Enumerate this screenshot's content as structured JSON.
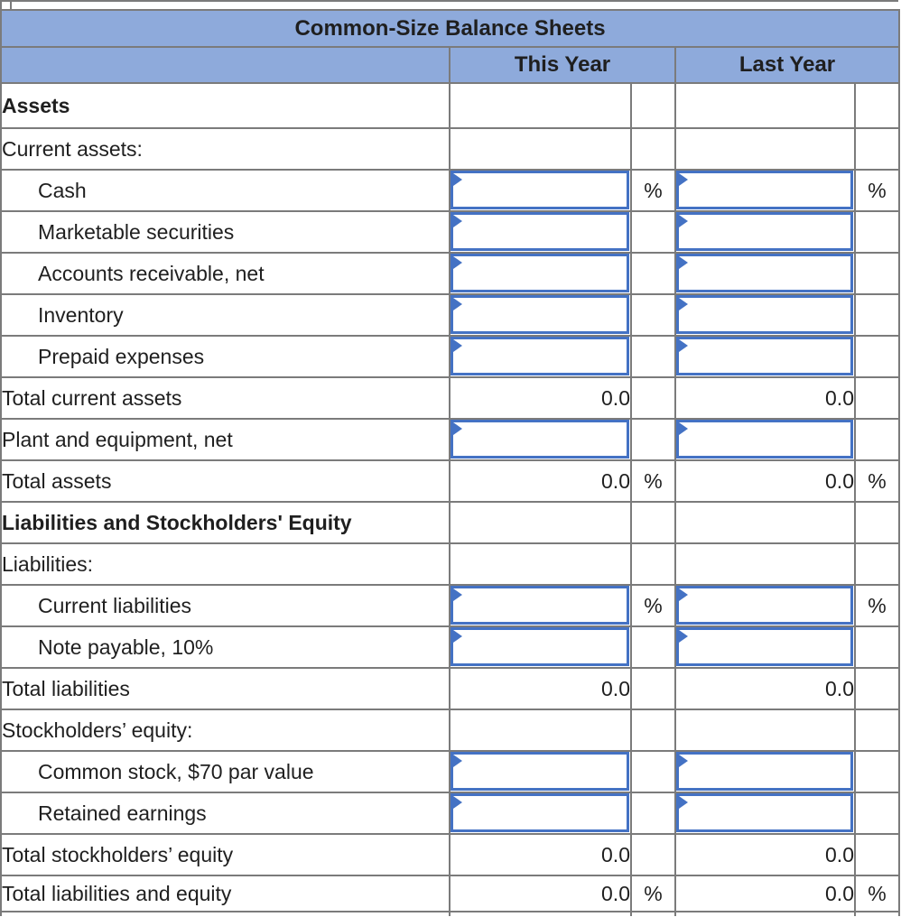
{
  "table": {
    "title": "Common-Size Balance Sheets",
    "columns": {
      "this_year": "This Year",
      "last_year": "Last Year"
    },
    "colors": {
      "header_blue": "#8EAADB",
      "grid_gray": "#7b7b7b",
      "input_border_blue": "#4472C4",
      "total_rule_black": "#000000",
      "text": "#1f1f1f"
    },
    "rows": [
      {
        "name": "assets-section",
        "label": "Assets",
        "bold": true
      },
      {
        "name": "current-assets",
        "label": "Current assets:"
      },
      {
        "name": "cash",
        "label": "Cash",
        "indent": true,
        "input": true,
        "pct": "%"
      },
      {
        "name": "marketable-securities",
        "label": "Marketable securities",
        "indent": true,
        "input": true
      },
      {
        "name": "accounts-receivable-net",
        "label": "Accounts receivable, net",
        "indent": true,
        "input": true
      },
      {
        "name": "inventory",
        "label": "Inventory",
        "indent": true,
        "input": true
      },
      {
        "name": "prepaid-expenses",
        "label": "Prepaid expenses",
        "indent": true,
        "input": true
      },
      {
        "name": "total-current-assets",
        "label": "Total current assets",
        "value": "0.0",
        "black_top": true
      },
      {
        "name": "plant-and-equipment-net",
        "label": "Plant and equipment, net",
        "input": true
      },
      {
        "name": "total-assets",
        "label": "Total assets",
        "value": "0.0",
        "pct": "%",
        "black_top": true
      },
      {
        "name": "liabilities-and-stockholders-equity-section",
        "label": "Liabilities and Stockholders' Equity",
        "bold": true
      },
      {
        "name": "liabilities",
        "label": "Liabilities:"
      },
      {
        "name": "current-liabilities",
        "label": "Current liabilities",
        "indent": true,
        "input": true,
        "pct": "%"
      },
      {
        "name": "note-payable-10pct",
        "label": "Note payable, 10%",
        "indent": true,
        "input": true
      },
      {
        "name": "total-liabilities",
        "label": "Total liabilities",
        "value": "0.0",
        "black_top": true
      },
      {
        "name": "stockholders-equity",
        "label": "Stockholders’ equity:"
      },
      {
        "name": "common-stock-70-par",
        "label": "Common stock, $70 par value",
        "indent": true,
        "input": true
      },
      {
        "name": "retained-earnings",
        "label": "Retained earnings",
        "indent": true,
        "input": true
      },
      {
        "name": "total-stockholders-equity",
        "label": "Total stockholders’ equity",
        "value": "0.0",
        "black_top": true
      },
      {
        "name": "total-liabilities-and-equity",
        "label": "Total liabilities and equity",
        "value": "0.0",
        "pct": "%",
        "black_top": true,
        "black_bottom": true
      }
    ]
  }
}
